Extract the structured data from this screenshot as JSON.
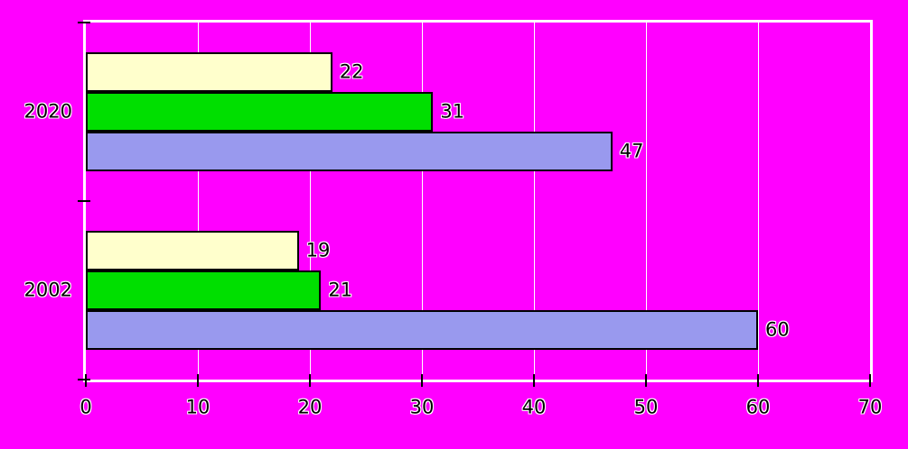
{
  "chart_data": {
    "type": "bar",
    "orientation": "horizontal",
    "title": "",
    "xlabel": "",
    "ylabel": "",
    "categories": [
      "2020",
      "2002"
    ],
    "series": [
      {
        "name": "cream",
        "color": "#FFFFCC",
        "values": [
          22,
          19
        ]
      },
      {
        "name": "green",
        "color": "#00DF00",
        "values": [
          31,
          21
        ]
      },
      {
        "name": "periwinkle",
        "color": "#9999EE",
        "values": [
          47,
          60
        ]
      }
    ],
    "xlim": [
      0,
      70
    ],
    "x_ticks": [
      0,
      10,
      20,
      30,
      40,
      50,
      60,
      70
    ],
    "grid": true,
    "legend": false,
    "value_labels": true,
    "colors": {
      "background": "#FF00FF",
      "plot_background": "#FF00FF",
      "axis_line": "#FFFFFF",
      "gridline": "#FFFFFF",
      "tick_mark": "#000000",
      "bar_border": "#000000",
      "label_text": "#000000",
      "label_halo": "#FFFFFF"
    }
  }
}
